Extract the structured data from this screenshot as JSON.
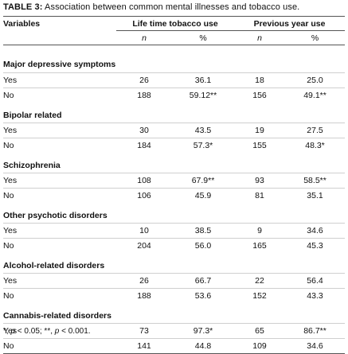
{
  "caption": {
    "label": "TABLE 3:",
    "text": " Association between common mental illnesses and tobacco use."
  },
  "header": {
    "variables": "Variables",
    "group1": "Life time tobacco use",
    "group2": "Previous year use",
    "n": "n",
    "pct": "%"
  },
  "sections": [
    {
      "title": "Major depressive symptoms",
      "rows": [
        {
          "label": "Yes",
          "n1": "26",
          "p1": "36.1",
          "n2": "18",
          "p2": "25.0"
        },
        {
          "label": "No",
          "n1": "188",
          "p1": "59.12**",
          "n2": "156",
          "p2": "49.1**"
        }
      ]
    },
    {
      "title": "Bipolar related",
      "rows": [
        {
          "label": "Yes",
          "n1": "30",
          "p1": "43.5",
          "n2": "19",
          "p2": "27.5"
        },
        {
          "label": "No",
          "n1": "184",
          "p1": "57.3*",
          "n2": "155",
          "p2": "48.3*"
        }
      ]
    },
    {
      "title": "Schizophrenia",
      "rows": [
        {
          "label": "Yes",
          "n1": "108",
          "p1": "67.9**",
          "n2": "93",
          "p2": "58.5**"
        },
        {
          "label": "No",
          "n1": "106",
          "p1": "45.9",
          "n2": "81",
          "p2": "35.1"
        }
      ]
    },
    {
      "title": "Other psychotic disorders",
      "rows": [
        {
          "label": "Yes",
          "n1": "10",
          "p1": "38.5",
          "n2": "9",
          "p2": "34.6"
        },
        {
          "label": "No",
          "n1": "204",
          "p1": "56.0",
          "n2": "165",
          "p2": "45.3"
        }
      ]
    },
    {
      "title": "Alcohol-related disorders",
      "rows": [
        {
          "label": "Yes",
          "n1": "26",
          "p1": "66.7",
          "n2": "22",
          "p2": "56.4"
        },
        {
          "label": "No",
          "n1": "188",
          "p1": "53.6",
          "n2": "152",
          "p2": "43.3"
        }
      ]
    },
    {
      "title": "Cannabis-related disorders",
      "rows": [
        {
          "label": "Yes",
          "n1": "73",
          "p1": "97.3*",
          "n2": "65",
          "p2": "86.7**"
        },
        {
          "label": "No",
          "n1": "141",
          "p1": "44.8",
          "n2": "109",
          "p2": "34.6"
        }
      ]
    }
  ],
  "footnote": {
    "part1": "*, ",
    "p1": "p",
    "part2": " < 0.05; **, ",
    "p2": "p",
    "part3": " < 0.001."
  }
}
